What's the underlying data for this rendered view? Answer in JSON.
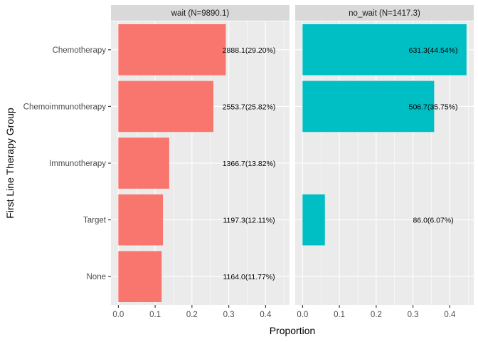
{
  "chart_data": {
    "type": "bar",
    "orientation": "horizontal",
    "facet": true,
    "xlabel": "Proportion",
    "ylabel": "First Line Therapy Group",
    "categories": [
      "Chemotherapy",
      "Chemoimmunotherapy",
      "Immunotherapy",
      "Target",
      "None"
    ],
    "xlim": [
      -0.02,
      0.465
    ],
    "xticks": [
      "0.0",
      "0.1",
      "0.2",
      "0.3",
      "0.4"
    ],
    "grid": true,
    "legend": "none",
    "label_x": 0.355,
    "panels": [
      {
        "title": "wait (N=9890.1)",
        "color": "#F8766D",
        "values": [
          0.292,
          0.2582,
          0.1382,
          0.1211,
          0.1177
        ],
        "labels": [
          "2888.1(29.20%)",
          "2553.7(25.82%)",
          "1366.7(13.82%)",
          "1197.3(12.11%)",
          "1164.0(11.77%)"
        ]
      },
      {
        "title": "no_wait (N=1417.3)",
        "color": "#00BFC4",
        "values": [
          0.4454,
          0.3575,
          0,
          0.0607,
          0
        ],
        "labels": [
          "631.3(44.54%)",
          "506.7(35.75%)",
          "",
          "86.0(6.07%)",
          ""
        ]
      }
    ]
  },
  "colors": {
    "panel_background": "#EBEBEB",
    "strip_background": "#D9D9D9",
    "grid": "#FFFFFF"
  }
}
